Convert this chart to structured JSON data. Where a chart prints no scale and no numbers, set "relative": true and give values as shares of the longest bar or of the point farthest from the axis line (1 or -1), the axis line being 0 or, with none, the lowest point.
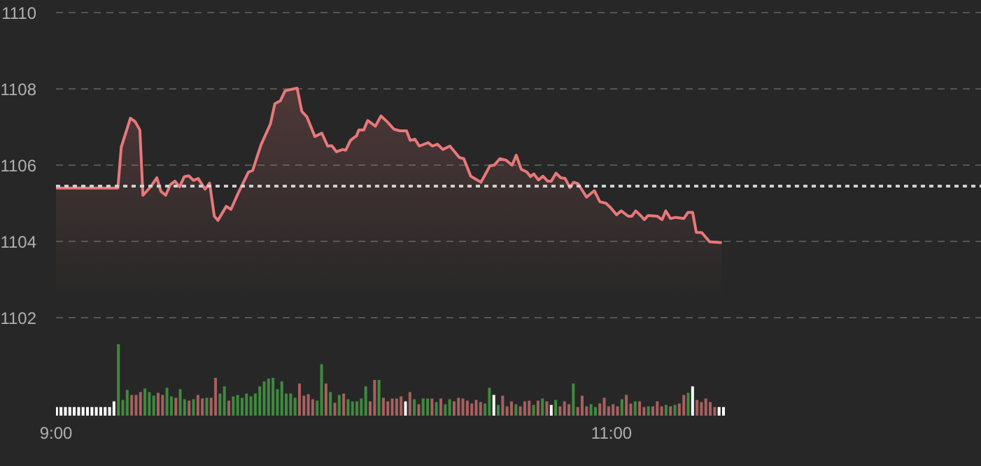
{
  "chart_data": [
    {
      "type": "area",
      "color": "#e8787a",
      "x": [
        9.0,
        9.223,
        9.235,
        9.268,
        9.285,
        9.302,
        9.313,
        9.343,
        9.363,
        9.378,
        9.395,
        9.412,
        9.428,
        9.445,
        9.462,
        9.478,
        9.495,
        9.512,
        9.537,
        9.553,
        9.57,
        9.583,
        9.613,
        9.63,
        9.655,
        9.693,
        9.708,
        9.738,
        9.772,
        9.788,
        9.808,
        9.825,
        9.868,
        9.885,
        9.903,
        9.932,
        9.957,
        9.978,
        9.993,
        10.01,
        10.032,
        10.043,
        10.06,
        10.082,
        10.09,
        10.108,
        10.122,
        10.15,
        10.17,
        10.192,
        10.217,
        10.238,
        10.262,
        10.275,
        10.292,
        10.308,
        10.34,
        10.355,
        10.373,
        10.393,
        10.418,
        10.452,
        10.468,
        10.493,
        10.53,
        10.562,
        10.578,
        10.598,
        10.62,
        10.642,
        10.657,
        10.675,
        10.695,
        10.708,
        10.72,
        10.737,
        10.753,
        10.77,
        10.783,
        10.8,
        10.817,
        10.833,
        10.85,
        10.863,
        10.88,
        10.91,
        10.938,
        10.958,
        10.98,
        10.997,
        11.018,
        11.035,
        11.06,
        11.073,
        11.087,
        11.107,
        11.118,
        11.132,
        11.165,
        11.182,
        11.195,
        11.212,
        11.232,
        11.26,
        11.275,
        11.292,
        11.305,
        11.325,
        11.353,
        11.397
      ],
      "values": [
        1105.4,
        1105.4,
        1106.47,
        1107.23,
        1107.14,
        1106.92,
        1105.21,
        1105.45,
        1105.67,
        1105.31,
        1105.21,
        1105.49,
        1105.58,
        1105.43,
        1105.7,
        1105.72,
        1105.6,
        1105.65,
        1105.37,
        1105.53,
        1104.66,
        1104.55,
        1104.92,
        1104.84,
        1105.25,
        1105.82,
        1105.86,
        1106.53,
        1107.08,
        1107.61,
        1107.69,
        1107.95,
        1108.02,
        1107.41,
        1107.27,
        1106.75,
        1106.84,
        1106.5,
        1106.51,
        1106.35,
        1106.41,
        1106.39,
        1106.65,
        1106.77,
        1106.92,
        1106.92,
        1107.17,
        1107.02,
        1107.29,
        1107.14,
        1106.94,
        1106.9,
        1106.9,
        1106.65,
        1106.68,
        1106.5,
        1106.59,
        1106.5,
        1106.55,
        1106.41,
        1106.5,
        1106.2,
        1106.17,
        1105.71,
        1105.55,
        1105.98,
        1106.0,
        1106.17,
        1106.13,
        1106.0,
        1106.26,
        1105.89,
        1105.82,
        1105.7,
        1105.77,
        1105.61,
        1105.71,
        1105.58,
        1105.58,
        1105.79,
        1105.67,
        1105.65,
        1105.41,
        1105.55,
        1105.51,
        1105.16,
        1105.33,
        1105.04,
        1105.0,
        1104.88,
        1104.7,
        1104.8,
        1104.66,
        1104.66,
        1104.8,
        1104.66,
        1104.57,
        1104.68,
        1104.66,
        1104.57,
        1104.8,
        1104.6,
        1104.63,
        1104.6,
        1104.76,
        1104.76,
        1104.24,
        1104.23,
        1103.99,
        1103.97
      ],
      "xlim": [
        9,
        12.33
      ],
      "tick_labels": "y",
      "ylim": [
        1102,
        1110
      ],
      "yticks": [
        1102,
        1104,
        1106,
        1108,
        1110
      ],
      "grid": "y",
      "ref_lines": [
        {
          "axis": "y",
          "value": 1105.45,
          "color": "#d0d0d0",
          "line_style": "dotted"
        }
      ]
    },
    {
      "type": "bar",
      "relative": true,
      "tick_labels": "x",
      "xlim": [
        9,
        12.33
      ],
      "xticks": [
        {
          "value": 9,
          "label": "9:00"
        },
        {
          "value": 11,
          "label": "11:00"
        }
      ],
      "x": [
        9.0,
        9.0159,
        9.0318,
        9.0477,
        9.0636,
        9.0795,
        9.0954,
        9.1113,
        9.1272,
        9.1431,
        9.159,
        9.1749,
        9.1908,
        9.2067,
        9.2226,
        9.2385,
        9.2544,
        9.2703,
        9.2862,
        9.3021,
        9.318,
        9.3339,
        9.3498,
        9.3657,
        9.3816,
        9.3975,
        9.4134,
        9.4293,
        9.4452,
        9.4611,
        9.477,
        9.4929,
        9.5088,
        9.5247,
        9.5406,
        9.5565,
        9.5724,
        9.5883,
        9.6042,
        9.6201,
        9.636,
        9.6519,
        9.6678,
        9.6837,
        9.6996,
        9.7155,
        9.7314,
        9.7473,
        9.7632,
        9.7791,
        9.795,
        9.8109,
        9.8268,
        9.8427,
        9.8586,
        9.8745,
        9.8904,
        9.9063,
        9.9222,
        9.9381,
        9.954,
        9.9699,
        9.9858,
        10.0017,
        10.0176,
        10.0335,
        10.0494,
        10.0653,
        10.0812,
        10.0971,
        10.113,
        10.1289,
        10.1448,
        10.1607,
        10.1766,
        10.1925,
        10.2084,
        10.2243,
        10.2402,
        10.2561,
        10.272,
        10.2879,
        10.3038,
        10.3197,
        10.3356,
        10.3515,
        10.3674,
        10.3833,
        10.3992,
        10.4151,
        10.431,
        10.4469,
        10.4628,
        10.4787,
        10.4946,
        10.5105,
        10.5264,
        10.5423,
        10.5582,
        10.5741,
        10.59,
        10.6059,
        10.6218,
        10.6377,
        10.6536,
        10.6695,
        10.6854,
        10.7013,
        10.7172,
        10.7331,
        10.749,
        10.7649,
        10.7808,
        10.7967,
        10.8126,
        10.8285,
        10.8444,
        10.8603,
        10.8762,
        10.8921,
        10.908,
        10.9239,
        10.9398,
        10.9557,
        10.9716,
        10.9875,
        11.0034,
        11.0193,
        11.0352,
        11.0511,
        11.067,
        11.0829,
        11.0988,
        11.1147,
        11.1306,
        11.1465,
        11.1624,
        11.1783,
        11.1942,
        11.2101,
        11.226,
        11.2419,
        11.2578,
        11.2737,
        11.2896,
        11.3055,
        11.3214,
        11.3373,
        11.3532,
        11.3691,
        11.385,
        11.4009
      ],
      "values": [
        0.12,
        0.12,
        0.12,
        0.12,
        0.12,
        0.12,
        0.12,
        0.12,
        0.12,
        0.12,
        0.12,
        0.12,
        0.12,
        0.2,
        1.0,
        0.22,
        0.36,
        0.29,
        0.29,
        0.33,
        0.38,
        0.33,
        0.28,
        0.32,
        0.29,
        0.39,
        0.27,
        0.25,
        0.37,
        0.23,
        0.21,
        0.23,
        0.29,
        0.24,
        0.25,
        0.25,
        0.53,
        0.31,
        0.41,
        0.21,
        0.27,
        0.29,
        0.25,
        0.31,
        0.27,
        0.31,
        0.41,
        0.48,
        0.52,
        0.53,
        0.37,
        0.48,
        0.31,
        0.31,
        0.25,
        0.45,
        0.28,
        0.3,
        0.23,
        0.21,
        0.72,
        0.45,
        0.33,
        0.18,
        0.29,
        0.31,
        0.23,
        0.2,
        0.2,
        0.24,
        0.41,
        0.2,
        0.5,
        0.5,
        0.25,
        0.2,
        0.24,
        0.24,
        0.27,
        0.2,
        0.33,
        0.23,
        0.16,
        0.24,
        0.24,
        0.24,
        0.19,
        0.24,
        0.16,
        0.23,
        0.2,
        0.25,
        0.24,
        0.21,
        0.17,
        0.22,
        0.19,
        0.17,
        0.39,
        0.29,
        0.15,
        0.28,
        0.13,
        0.2,
        0.16,
        0.13,
        0.2,
        0.21,
        0.15,
        0.21,
        0.24,
        0.2,
        0.15,
        0.22,
        0.13,
        0.2,
        0.16,
        0.45,
        0.12,
        0.28,
        0.13,
        0.16,
        0.12,
        0.17,
        0.25,
        0.13,
        0.16,
        0.13,
        0.23,
        0.29,
        0.17,
        0.2,
        0.2,
        0.12,
        0.13,
        0.13,
        0.2,
        0.13,
        0.15,
        0.13,
        0.15,
        0.17,
        0.29,
        0.32,
        0.41,
        0.22,
        0.19,
        0.24,
        0.19,
        0.12,
        0.12,
        0.12
      ],
      "colors": [
        "#ffffff",
        "#ffffff",
        "#ffffff",
        "#ffffff",
        "#ffffff",
        "#ffffff",
        "#ffffff",
        "#ffffff",
        "#ffffff",
        "#ffffff",
        "#ffffff",
        "#ffffff",
        "#ffffff",
        "#ffffff",
        "#3f8a3f",
        "#3f8a3f",
        "#3f8a3f",
        "#a86060",
        "#a86060",
        "#a86060",
        "#3f8a3f",
        "#3f8a3f",
        "#3f8a3f",
        "#a86060",
        "#a86060",
        "#3f8a3f",
        "#3f8a3f",
        "#a86060",
        "#3f8a3f",
        "#3f8a3f",
        "#a86060",
        "#3f8a3f",
        "#a86060",
        "#a86060",
        "#3f8a3f",
        "#a86060",
        "#a86060",
        "#3f8a3f",
        "#3f8a3f",
        "#a86060",
        "#3f8a3f",
        "#3f8a3f",
        "#3f8a3f",
        "#3f8a3f",
        "#3f8a3f",
        "#3f8a3f",
        "#3f8a3f",
        "#3f8a3f",
        "#3f8a3f",
        "#3f8a3f",
        "#3f8a3f",
        "#3f8a3f",
        "#3f8a3f",
        "#3f8a3f",
        "#3f8a3f",
        "#a86060",
        "#a86060",
        "#a86060",
        "#a86060",
        "#3f8a3f",
        "#3f8a3f",
        "#a86060",
        "#3f8a3f",
        "#a86060",
        "#3f8a3f",
        "#a86060",
        "#3f8a3f",
        "#3f8a3f",
        "#3f8a3f",
        "#3f8a3f",
        "#3f8a3f",
        "#a86060",
        "#a86060",
        "#3f8a3f",
        "#a86060",
        "#a86060",
        "#a86060",
        "#a86060",
        "#a86060",
        "#ffffff",
        "#a86060",
        "#3f8a3f",
        "#a86060",
        "#3f8a3f",
        "#3f8a3f",
        "#a86060",
        "#3f8a3f",
        "#a86060",
        "#3f8a3f",
        "#3f8a3f",
        "#a86060",
        "#a86060",
        "#a86060",
        "#a86060",
        "#a86060",
        "#a86060",
        "#a86060",
        "#3f8a3f",
        "#3f8a3f",
        "#ffffff",
        "#3f8a3f",
        "#a86060",
        "#a86060",
        "#a86060",
        "#3f8a3f",
        "#a86060",
        "#a86060",
        "#a86060",
        "#3f8a3f",
        "#a86060",
        "#3f8a3f",
        "#a86060",
        "#ffffff",
        "#3f8a3f",
        "#a86060",
        "#a86060",
        "#a86060",
        "#3f8a3f",
        "#a86060",
        "#a86060",
        "#a86060",
        "#3f8a3f",
        "#3f8a3f",
        "#a86060",
        "#a86060",
        "#a86060",
        "#a86060",
        "#a86060",
        "#3f8a3f",
        "#a86060",
        "#a86060",
        "#3f8a3f",
        "#a86060",
        "#a86060",
        "#3f8a3f",
        "#a86060",
        "#a86060",
        "#a86060",
        "#3f8a3f",
        "#a86060",
        "#3f8a3f",
        "#a86060",
        "#a86060",
        "#3f8a3f",
        "#ffffff",
        "#a86060",
        "#a86060",
        "#a86060",
        "#a86060",
        "#a86060",
        "#ffffff",
        "#ffffff"
      ]
    }
  ]
}
